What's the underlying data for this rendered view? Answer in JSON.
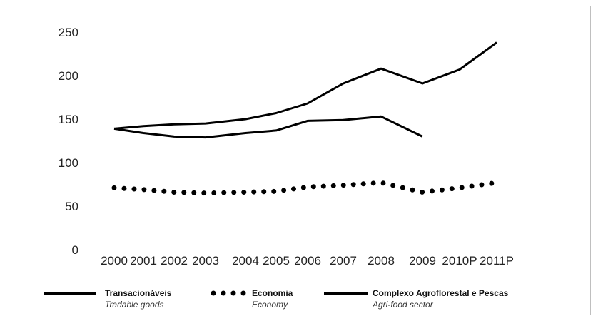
{
  "chart_data": {
    "type": "line",
    "categories": [
      "2000",
      "2001",
      "2002",
      "2003",
      "2004",
      "2005",
      "2006",
      "2007",
      "2008",
      "2009",
      "2010P",
      "2011P"
    ],
    "yticks": [
      0,
      50,
      100,
      150,
      200,
      250
    ],
    "ylim": [
      0,
      250
    ],
    "grid": false,
    "legend_placement": "bottom",
    "series": [
      {
        "name": "Transacionáveis",
        "subtitle": "Tradable goods",
        "style": "solid",
        "color": "#000000",
        "values": [
          139,
          142,
          144,
          145,
          150,
          157,
          168,
          191,
          208,
          191,
          207,
          238
        ]
      },
      {
        "name": "Economia",
        "subtitle": "Economy",
        "style": "dotted",
        "color": "#000000",
        "values": [
          71,
          69,
          66,
          65,
          66,
          67,
          72,
          74,
          77,
          66,
          71,
          77
        ]
      },
      {
        "name": "Complexo Agroflorestal e Pescas",
        "subtitle": "Agri-food sector",
        "style": "solid",
        "color": "#000000",
        "values": [
          139,
          134,
          130,
          129,
          134,
          137,
          148,
          149,
          153,
          130,
          null,
          null
        ]
      }
    ]
  }
}
